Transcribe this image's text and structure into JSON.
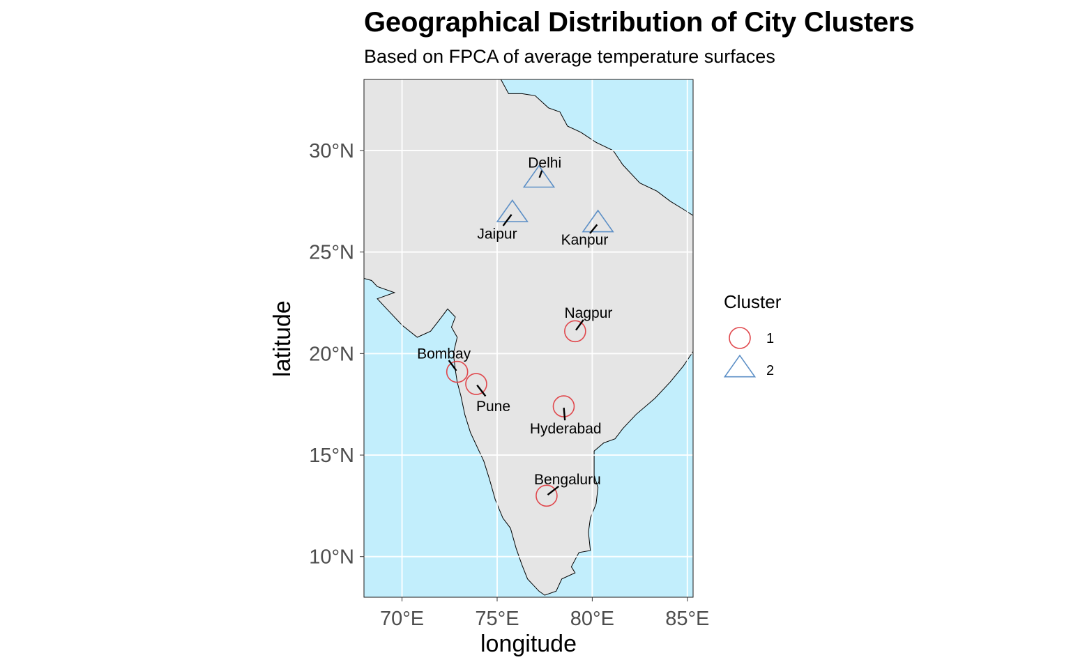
{
  "title": "Geographical Distribution of City Clusters",
  "subtitle": "Based on FPCA of average temperature surfaces",
  "chart_data": {
    "type": "scatter",
    "map_region": "India",
    "xlabel": "longitude",
    "ylabel": "latitude",
    "xlim": [
      68,
      85.3
    ],
    "ylim": [
      8,
      33.5
    ],
    "x_ticks": [
      70,
      75,
      80,
      85
    ],
    "x_tick_labels": [
      "70°E",
      "75°E",
      "80°E",
      "85°E"
    ],
    "y_ticks": [
      10,
      15,
      20,
      25,
      30
    ],
    "y_tick_labels": [
      "10°N",
      "15°N",
      "20°N",
      "25°N",
      "30°N"
    ],
    "grid": true,
    "colors": {
      "water": "#c2eefc",
      "land": "#e5e5e5",
      "grid": "#ffffff",
      "cluster_1": "#e0474c",
      "cluster_2": "#5c8fc6"
    },
    "legend": {
      "title": "Cluster",
      "position": "right",
      "entries": [
        {
          "label": "1",
          "shape": "circle",
          "color": "#e0474c"
        },
        {
          "label": "2",
          "shape": "triangle",
          "color": "#5c8fc6"
        }
      ]
    },
    "points": [
      {
        "city": "Delhi",
        "lon": 77.2,
        "lat": 28.6,
        "cluster": "2",
        "label_lon": 77.5,
        "label_lat": 29.4
      },
      {
        "city": "Jaipur",
        "lon": 75.8,
        "lat": 26.9,
        "cluster": "2",
        "label_lon": 75.0,
        "label_lat": 25.9
      },
      {
        "city": "Kanpur",
        "lon": 80.3,
        "lat": 26.4,
        "cluster": "2",
        "label_lon": 79.6,
        "label_lat": 25.6
      },
      {
        "city": "Nagpur",
        "lon": 79.1,
        "lat": 21.1,
        "cluster": "1",
        "label_lon": 79.8,
        "label_lat": 22.0
      },
      {
        "city": "Bombay",
        "lon": 72.9,
        "lat": 19.1,
        "cluster": "1",
        "label_lon": 72.2,
        "label_lat": 20.0
      },
      {
        "city": "Pune",
        "lon": 73.9,
        "lat": 18.5,
        "cluster": "1",
        "label_lon": 74.8,
        "label_lat": 17.4
      },
      {
        "city": "Hyderabad",
        "lon": 78.5,
        "lat": 17.4,
        "cluster": "1",
        "label_lon": 78.6,
        "label_lat": 16.3
      },
      {
        "city": "Bengaluru",
        "lon": 77.6,
        "lat": 13.0,
        "cluster": "1",
        "label_lon": 78.7,
        "label_lat": 13.8
      }
    ]
  },
  "coastline_geo": [
    [
      74.6,
      33.5
    ],
    [
      75.2,
      33.5
    ],
    [
      75.6,
      32.8
    ],
    [
      76.3,
      32.8
    ],
    [
      77.0,
      32.7
    ],
    [
      77.7,
      32.1
    ],
    [
      78.3,
      31.9
    ],
    [
      78.7,
      31.2
    ],
    [
      79.4,
      30.9
    ],
    [
      80.2,
      30.4
    ],
    [
      81.1,
      30.0
    ],
    [
      81.6,
      29.3
    ],
    [
      82.5,
      28.4
    ],
    [
      83.4,
      28.0
    ],
    [
      84.1,
      27.5
    ],
    [
      84.8,
      27.1
    ],
    [
      85.3,
      26.8
    ],
    [
      85.3,
      20.1
    ],
    [
      84.8,
      19.4
    ],
    [
      84.1,
      18.6
    ],
    [
      83.3,
      17.8
    ],
    [
      82.3,
      17.0
    ],
    [
      81.6,
      16.3
    ],
    [
      81.2,
      15.8
    ],
    [
      80.6,
      15.6
    ],
    [
      80.1,
      15.2
    ],
    [
      80.1,
      14.0
    ],
    [
      80.3,
      13.4
    ],
    [
      80.2,
      12.6
    ],
    [
      79.9,
      11.9
    ],
    [
      79.8,
      11.2
    ],
    [
      79.9,
      10.3
    ],
    [
      79.3,
      10.2
    ],
    [
      78.9,
      9.5
    ],
    [
      79.1,
      9.2
    ],
    [
      78.4,
      8.9
    ],
    [
      78.1,
      8.3
    ],
    [
      77.5,
      8.1
    ],
    [
      77.2,
      8.3
    ],
    [
      76.6,
      8.9
    ],
    [
      76.3,
      9.6
    ],
    [
      76.0,
      10.4
    ],
    [
      75.7,
      11.4
    ],
    [
      75.3,
      11.9
    ],
    [
      74.9,
      12.8
    ],
    [
      74.6,
      13.8
    ],
    [
      74.3,
      14.7
    ],
    [
      74.0,
      15.3
    ],
    [
      73.6,
      16.1
    ],
    [
      73.3,
      17.0
    ],
    [
      73.1,
      17.9
    ],
    [
      72.9,
      18.6
    ],
    [
      72.8,
      19.2
    ],
    [
      72.7,
      20.0
    ],
    [
      72.9,
      20.8
    ],
    [
      72.6,
      21.3
    ],
    [
      72.8,
      21.8
    ],
    [
      72.4,
      22.2
    ],
    [
      72.0,
      21.7
    ],
    [
      71.5,
      21.1
    ],
    [
      70.8,
      20.8
    ],
    [
      70.0,
      21.4
    ],
    [
      69.2,
      22.2
    ],
    [
      68.7,
      22.7
    ],
    [
      69.6,
      23.0
    ],
    [
      68.7,
      23.3
    ],
    [
      68.4,
      23.6
    ],
    [
      68.0,
      23.7
    ],
    [
      68.0,
      33.5
    ]
  ]
}
